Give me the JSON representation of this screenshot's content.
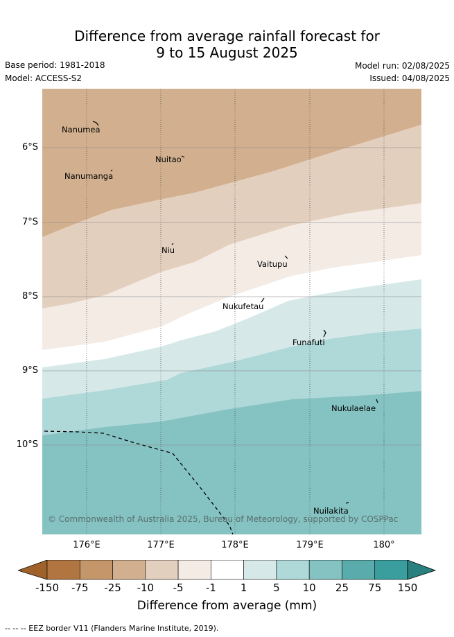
{
  "title_line1": "Difference from average rainfall forecast for",
  "title_line2": "9 to 15 August 2025",
  "base_period": "Base period: 1981-2018",
  "model": "Model: ACCESS-S2",
  "model_run": "Model run: 02/08/2025",
  "issued": "Issued: 04/08/2025",
  "lat_labels": [
    "6°S",
    "7°S",
    "8°S",
    "9°S",
    "10°S"
  ],
  "lon_labels": [
    "176°E",
    "177°E",
    "178°E",
    "179°E",
    "180°"
  ],
  "places": [
    "Nanumea",
    "Nuitao",
    "Nanumanga",
    "Niu",
    "Vaitupu",
    "Nukufetau",
    "Funafuti",
    "Nukulaelae",
    "Nuilakita"
  ],
  "copyright": "© Commonwealth of Australia 2025, Bureau of Meteorology, supported by COSPPac",
  "colorbar": {
    "ticks": [
      "-150",
      "-75",
      "-25",
      "-10",
      "-5",
      "-1",
      "1",
      "5",
      "10",
      "25",
      "75",
      "150"
    ],
    "colors": [
      "#a0622a",
      "#b07540",
      "#c4966a",
      "#d2b08f",
      "#e3cfbd",
      "#f4ebe5",
      "#ffffff",
      "#d6e9e8",
      "#afd8d8",
      "#85c2c2",
      "#5aacac",
      "#3a9e9e",
      "#2a7f7f"
    ],
    "title": "Difference from average (mm)"
  },
  "footnote": "--  --  -- EEZ border V11 (Flanders Marine Institute, 2019)."
}
